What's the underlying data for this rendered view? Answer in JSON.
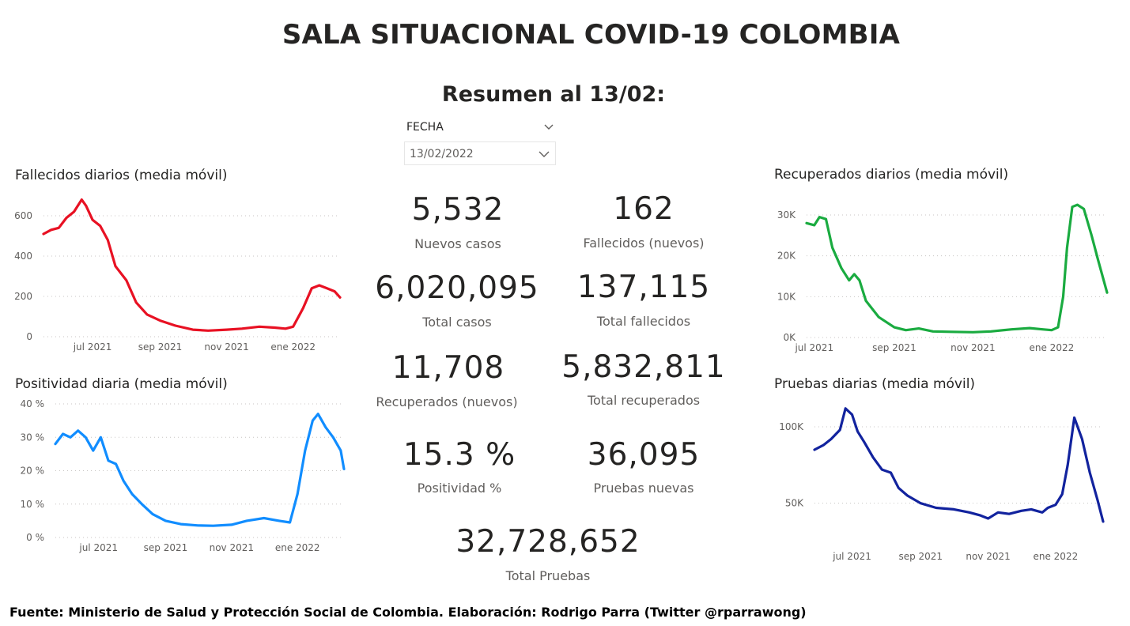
{
  "header": {
    "title": "SALA SITUACIONAL COVID-19 COLOMBIA",
    "subtitle": "Resumen al 13/02:"
  },
  "slicer": {
    "label": "FECHA",
    "value": "13/02/2022",
    "icon": "chevron-down-icon"
  },
  "kpis": [
    {
      "value": "5,532",
      "label": "Nuevos casos"
    },
    {
      "value": "162",
      "label": "Fallecidos (nuevos)"
    },
    {
      "value": "6,020,095",
      "label": "Total casos"
    },
    {
      "value": "137,115",
      "label": "Total fallecidos"
    },
    {
      "value": "11,708",
      "label": "Recuperados (nuevos)"
    },
    {
      "value": "5,832,811",
      "label": "Total recuperados"
    },
    {
      "value": "15.3 %",
      "label": "Positividad %"
    },
    {
      "value": "36,095",
      "label": "Pruebas nuevas"
    },
    {
      "value": "32,728,652",
      "label": "Total Pruebas"
    }
  ],
  "footer": "Fuente: Ministerio de Salud y Protección Social de Colombia. Elaboración: Rodrigo Parra (Twitter @rparrawong)",
  "chart_data": [
    {
      "id": "fallecidos",
      "type": "line",
      "title": "Fallecidos diarios (media móvil)",
      "color": "#e81123",
      "xlim": [
        "2021-05-17",
        "2022-02-13"
      ],
      "ylim": [
        0,
        600
      ],
      "yticks": [
        0,
        200,
        400,
        600
      ],
      "yticklabels": [
        "0",
        "200",
        "400",
        "600"
      ],
      "xticks": [
        "2021-07-01",
        "2021-09-01",
        "2021-11-01",
        "2022-01-01"
      ],
      "xticklabels": [
        "jul 2021",
        "sep 2021",
        "nov 2021",
        "ene 2022"
      ],
      "grid": true,
      "x": [
        "2021-05-17",
        "2021-05-24",
        "2021-05-31",
        "2021-06-07",
        "2021-06-14",
        "2021-06-21",
        "2021-06-25",
        "2021-07-01",
        "2021-07-08",
        "2021-07-15",
        "2021-07-22",
        "2021-08-01",
        "2021-08-10",
        "2021-08-20",
        "2021-09-01",
        "2021-09-15",
        "2021-10-01",
        "2021-10-15",
        "2021-11-01",
        "2021-11-15",
        "2021-12-01",
        "2021-12-15",
        "2021-12-25",
        "2022-01-01",
        "2022-01-10",
        "2022-01-18",
        "2022-01-25",
        "2022-02-01",
        "2022-02-08",
        "2022-02-13"
      ],
      "y": [
        510,
        530,
        540,
        590,
        620,
        680,
        650,
        580,
        550,
        480,
        350,
        280,
        170,
        110,
        80,
        55,
        35,
        30,
        35,
        40,
        50,
        45,
        40,
        50,
        140,
        240,
        255,
        240,
        225,
        195
      ]
    },
    {
      "id": "positividad",
      "type": "line",
      "title": "Positividad diaria (media móvil)",
      "color": "#118dff",
      "xlim": [
        "2021-05-22",
        "2022-02-13"
      ],
      "ylim": [
        0,
        40
      ],
      "yticks": [
        0,
        10,
        20,
        30,
        40
      ],
      "yticklabels": [
        "0 %",
        "10 %",
        "20 %",
        "30 %",
        "40 %"
      ],
      "xticks": [
        "2021-07-01",
        "2021-09-01",
        "2021-11-01",
        "2022-01-01"
      ],
      "xticklabels": [
        "jul 2021",
        "sep 2021",
        "nov 2021",
        "ene 2022"
      ],
      "grid": true,
      "x": [
        "2021-05-22",
        "2021-05-29",
        "2021-06-05",
        "2021-06-12",
        "2021-06-19",
        "2021-06-26",
        "2021-07-03",
        "2021-07-10",
        "2021-07-17",
        "2021-07-24",
        "2021-08-01",
        "2021-08-10",
        "2021-08-20",
        "2021-09-01",
        "2021-09-15",
        "2021-10-01",
        "2021-10-15",
        "2021-11-01",
        "2021-11-15",
        "2021-12-01",
        "2021-12-15",
        "2021-12-25",
        "2022-01-01",
        "2022-01-08",
        "2022-01-15",
        "2022-01-20",
        "2022-01-27",
        "2022-02-03",
        "2022-02-10",
        "2022-02-13"
      ],
      "y": [
        28,
        31,
        30,
        32,
        30,
        26,
        30,
        23,
        22,
        17,
        13,
        10,
        7,
        5,
        4,
        3.6,
        3.5,
        3.8,
        5,
        5.8,
        5,
        4.5,
        13,
        26,
        35,
        37,
        33,
        30,
        26,
        20.5
      ]
    },
    {
      "id": "recuperados",
      "type": "line",
      "title": "Recuperados diarios (media móvil)",
      "color": "#1aab40",
      "xlim": [
        "2021-06-25",
        "2022-02-13"
      ],
      "ylim": [
        0,
        30000
      ],
      "yticks": [
        0,
        10000,
        20000,
        30000
      ],
      "yticklabels": [
        "0K",
        "10K",
        "20K",
        "30K"
      ],
      "xticks": [
        "2021-07-01",
        "2021-09-01",
        "2021-11-01",
        "2022-01-01"
      ],
      "xticklabels": [
        "jul 2021",
        "sep 2021",
        "nov 2021",
        "ene 2022"
      ],
      "grid": true,
      "x": [
        "2021-06-25",
        "2021-07-01",
        "2021-07-05",
        "2021-07-10",
        "2021-07-15",
        "2021-07-22",
        "2021-07-28",
        "2021-08-01",
        "2021-08-05",
        "2021-08-10",
        "2021-08-20",
        "2021-09-01",
        "2021-09-10",
        "2021-09-20",
        "2021-10-01",
        "2021-10-15",
        "2021-11-01",
        "2021-11-15",
        "2021-12-01",
        "2021-12-15",
        "2021-12-25",
        "2022-01-01",
        "2022-01-06",
        "2022-01-10",
        "2022-01-13",
        "2022-01-17",
        "2022-01-21",
        "2022-01-26",
        "2022-02-01",
        "2022-02-06",
        "2022-02-13"
      ],
      "y": [
        28000,
        27500,
        29500,
        29000,
        22000,
        17000,
        14000,
        15500,
        14000,
        9000,
        5000,
        2500,
        1800,
        2200,
        1500,
        1400,
        1300,
        1500,
        2000,
        2300,
        2000,
        1800,
        2500,
        10000,
        22000,
        32000,
        32500,
        31500,
        25000,
        19000,
        11000
      ]
    },
    {
      "id": "pruebas",
      "type": "line",
      "title": "Pruebas diarias (media móvil)",
      "color": "#12239e",
      "xlim": [
        "2021-05-28",
        "2022-02-13"
      ],
      "ylim": [
        25000,
        115000
      ],
      "yticks": [
        50000,
        100000
      ],
      "yticklabels": [
        "50K",
        "100K"
      ],
      "xticks": [
        "2021-07-01",
        "2021-09-01",
        "2021-11-01",
        "2022-01-01"
      ],
      "xticklabels": [
        "jul 2021",
        "sep 2021",
        "nov 2021",
        "ene 2022"
      ],
      "grid": true,
      "x": [
        "2021-05-28",
        "2021-06-05",
        "2021-06-12",
        "2021-06-20",
        "2021-06-25",
        "2021-07-01",
        "2021-07-06",
        "2021-07-12",
        "2021-07-20",
        "2021-07-28",
        "2021-08-05",
        "2021-08-12",
        "2021-08-20",
        "2021-09-01",
        "2021-09-15",
        "2021-10-01",
        "2021-10-15",
        "2021-10-25",
        "2021-11-01",
        "2021-11-10",
        "2021-11-20",
        "2021-12-01",
        "2021-12-10",
        "2021-12-20",
        "2021-12-25",
        "2022-01-01",
        "2022-01-07",
        "2022-01-12",
        "2022-01-18",
        "2022-01-25",
        "2022-02-01",
        "2022-02-08",
        "2022-02-13"
      ],
      "y": [
        85000,
        88000,
        92000,
        98000,
        112000,
        108000,
        97000,
        90000,
        80000,
        72000,
        70000,
        60000,
        55000,
        50000,
        47000,
        46000,
        44000,
        42000,
        40000,
        44000,
        43000,
        45000,
        46000,
        44000,
        47000,
        49000,
        56000,
        75000,
        106000,
        92000,
        70000,
        52000,
        38000
      ]
    }
  ]
}
